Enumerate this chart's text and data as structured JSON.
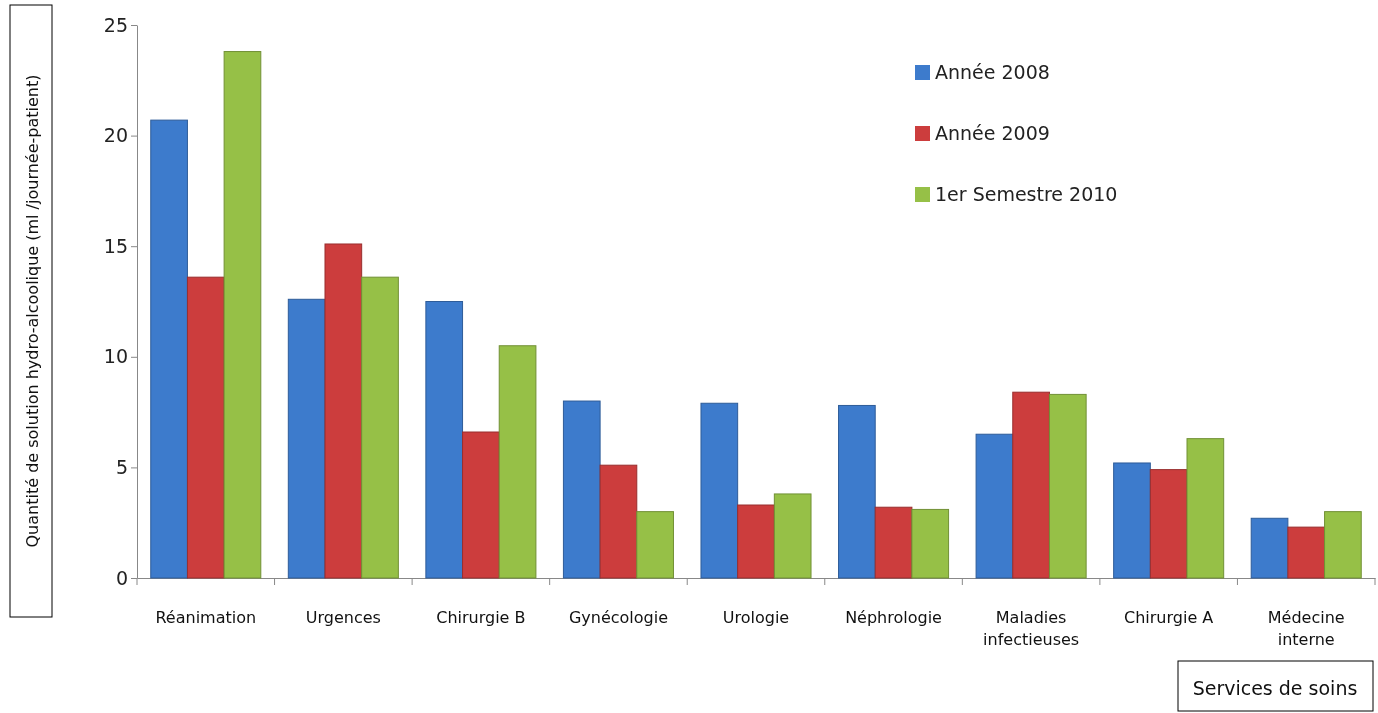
{
  "chart_data": {
    "type": "bar",
    "ylabel": "Quantité de solution hydro-alcoolique  (ml /journée-patient)",
    "xlabel": "Services de soins",
    "categories": [
      "Réanimation",
      "Urgences",
      "Chirurgie B",
      "Gynécologie",
      "Urologie",
      "Néphrologie",
      "Maladies infectieuses",
      "Chirurgie A",
      "Médecine interne"
    ],
    "series": [
      {
        "name": "Année 2008",
        "color": "#3d7bcc",
        "values": [
          20.7,
          12.6,
          12.5,
          8.0,
          7.9,
          7.8,
          6.5,
          5.2,
          2.7
        ]
      },
      {
        "name": "Année 2009",
        "color": "#cc3d3d",
        "values": [
          13.6,
          15.1,
          6.6,
          5.1,
          3.3,
          3.2,
          8.4,
          4.9,
          2.3
        ]
      },
      {
        "name": "1er Semestre 2010",
        "color": "#96c047",
        "values": [
          23.8,
          13.6,
          10.5,
          3.0,
          3.8,
          3.1,
          8.3,
          6.3,
          3.0
        ]
      }
    ],
    "ylim": [
      0,
      25
    ],
    "yticks": [
      0,
      5,
      10,
      15,
      20,
      25
    ],
    "grid": false,
    "legend": "top right"
  }
}
